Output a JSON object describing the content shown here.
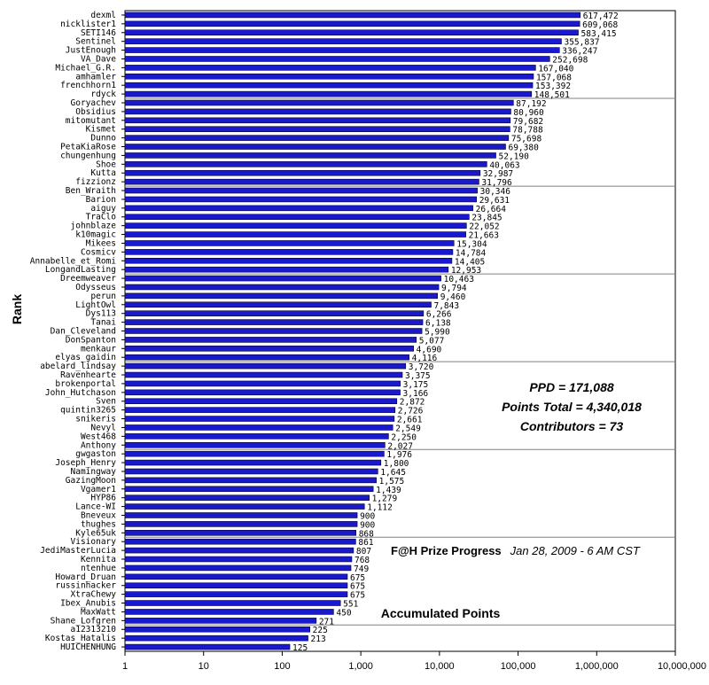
{
  "chart_data": {
    "type": "bar",
    "orientation": "horizontal",
    "title": "F@H Prize Progress",
    "subtitle": "Jan 28, 2009 - 6 AM CST",
    "xlabel": "Accumulated Points",
    "ylabel": "Rank",
    "x_scale": "log",
    "xlim": [
      1,
      10000000
    ],
    "x_ticks": [
      "1",
      "10",
      "100",
      "1,000",
      "10,000",
      "100,000",
      "1,000,000",
      "10,000,000"
    ],
    "x_tick_values": [
      1,
      10,
      100,
      1000,
      10000,
      100000,
      1000000,
      10000000
    ],
    "grid": "horizontal-every-10",
    "legend": "none",
    "colors": {
      "bar": "#1a1acc",
      "bar_edge": "#000033",
      "grid": "#808080"
    },
    "stats": [
      "PPD = 171,088",
      "Points Total = 4,340,018",
      "Contributors = 73"
    ],
    "categories": [
      "dexml",
      "nicklister1",
      "SETI146",
      "Sentinel",
      "JustEnough",
      "VA_Dave",
      "Michael_G.R.",
      "amhamler",
      "frenchhorn1",
      "rdyck",
      "Goryachev",
      "Obsidius",
      "mitomutant",
      "Kismet",
      "Dunno",
      "PetaKiaRose",
      "chungenhung",
      "Shoe",
      "Kutta",
      "fizzionz",
      "Ben_Wraith",
      "Barion",
      "aiguy",
      "TraClo",
      "johnblaze",
      "k10magic",
      "Mikees",
      "Cosmicv",
      "Annabelle_et_Romi",
      "LongandLasting",
      "Dreemweaver",
      "Odysseus",
      "perun",
      "LightOwl",
      "Dys113",
      "Tanai",
      "Dan_Cleveland",
      "DonSpanton",
      "menkaur",
      "elyas_gaidin",
      "abelard_lindsay",
      "Ravenhearte",
      "brokenportal",
      "John_Hutchason",
      "Sven",
      "quintin3265",
      "snikeris",
      "Nevyl",
      "West468",
      "Anthony",
      "gwgaston",
      "Joseph_Henry",
      "Namingway",
      "GazingMoon",
      "Vgamer1",
      "HYP86",
      "Lance-WI",
      "Bneveux",
      "thughes",
      "Kyle65uk",
      "Visionary",
      "JediMasterLucia",
      "Kennita",
      "ntenhue",
      "Howard_Druan",
      "russinhacker",
      "XtraChewy",
      "Ibex_Anubis",
      "MaxWatt",
      "Shane_Lofgren",
      "a12313210",
      "Kostas_Hatalis",
      "HUICHENHUNG"
    ],
    "values": [
      617472,
      609068,
      583415,
      355837,
      336247,
      252698,
      167040,
      157068,
      153392,
      148501,
      87192,
      80960,
      79682,
      78788,
      75698,
      69380,
      52190,
      40063,
      32987,
      31796,
      30346,
      29631,
      26664,
      23845,
      22052,
      21663,
      15304,
      14784,
      14405,
      12953,
      10463,
      9794,
      9460,
      7843,
      6266,
      6138,
      5990,
      5077,
      4690,
      4116,
      3720,
      3375,
      3175,
      3166,
      2872,
      2726,
      2661,
      2549,
      2250,
      2027,
      1976,
      1800,
      1645,
      1575,
      1439,
      1279,
      1112,
      900,
      900,
      868,
      861,
      807,
      768,
      749,
      675,
      675,
      675,
      551,
      450,
      271,
      225,
      213,
      125
    ],
    "value_labels": [
      "617,472",
      "609,068",
      "583,415",
      "355,837",
      "336,247",
      "252,698",
      "167,040",
      "157,068",
      "153,392",
      "148,501",
      "87,192",
      "80,960",
      "79,682",
      "78,788",
      "75,698",
      "69,380",
      "52,190",
      "40,063",
      "32,987",
      "31,796",
      "30,346",
      "29,631",
      "26,664",
      "23,845",
      "22,052",
      "21,663",
      "15,304",
      "14,784",
      "14,405",
      "12,953",
      "10,463",
      "9,794",
      "9,460",
      "7,843",
      "6,266",
      "6,138",
      "5,990",
      "5,077",
      "4,690",
      "4,116",
      "3,720",
      "3,375",
      "3,175",
      "3,166",
      "2,872",
      "2,726",
      "2,661",
      "2,549",
      "2,250",
      "2,027",
      "1,976",
      "1,800",
      "1,645",
      "1,575",
      "1,439",
      "1,279",
      "1,112",
      "900",
      "900",
      "868",
      "861",
      "807",
      "768",
      "749",
      "675",
      "675",
      "675",
      "551",
      "450",
      "271",
      "225",
      "213",
      "125"
    ]
  }
}
